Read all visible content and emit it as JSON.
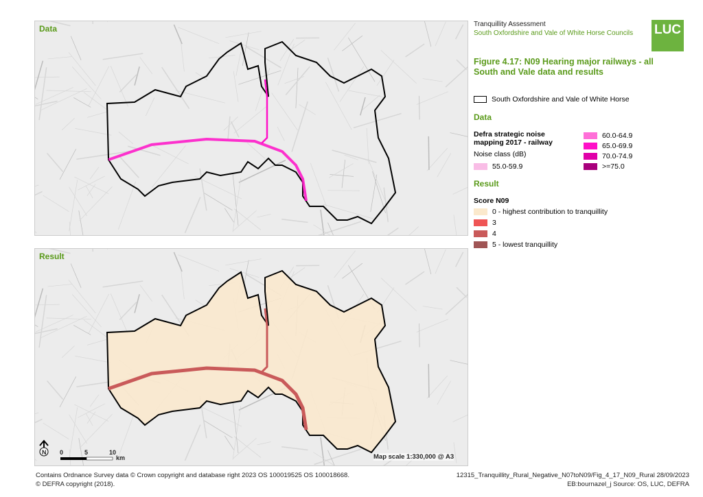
{
  "header": {
    "line1": "Tranquillity Assessment",
    "line2": "South Oxfordshire and Vale of White Horse Councils",
    "logo": "LUC"
  },
  "figure_title": "Figure 4.17: N09 Hearing major railways - all South and Vale data and results",
  "maps": {
    "top_label": "Data",
    "bottom_label": "Result",
    "scale_text": "Map scale 1:330,000 @ A3",
    "scalebar": [
      "0",
      "5",
      "10",
      "km"
    ],
    "north": "N"
  },
  "legend": {
    "boundary": "South Oxfordshire and Vale of White Horse",
    "data_heading": "Data",
    "data_title": "Defra strategic noise mapping 2017 - railway",
    "data_subtitle": "Noise class (dB)",
    "noise_classes": [
      {
        "label": "55.0-59.9",
        "color": "#f9bde6"
      },
      {
        "label": "60.0-64.9",
        "color": "#ff6fd8"
      },
      {
        "label": "65.0-69.9",
        "color": "#ff10c8"
      },
      {
        "label": "70.0-74.9",
        "color": "#e000a8"
      },
      {
        "label": ">=75.0",
        "color": "#a8007c"
      }
    ],
    "result_heading": "Result",
    "result_title": "Score N09",
    "scores": [
      {
        "label": "0 - highest contribution to tranquillity",
        "color": "#fbe9cc"
      },
      {
        "label": "3",
        "color": "#ef5555"
      },
      {
        "label": "4",
        "color": "#c95a5a"
      },
      {
        "label": "5 - lowest tranquillity",
        "color": "#a05555"
      }
    ]
  },
  "footer": {
    "left1": "Contains Ordnance Survey data © Crown copyright and database right 2023 OS 100019525 OS 100018668.",
    "left2": "© DEFRA copyright (2018).",
    "right1": "12315_Tranquillity_Rural_Negative_N07toN09/Fig_4_17_N09_Rural 28/09/2023",
    "right2": "EB:bournazel_j Source: OS, LUC, DEFRA"
  }
}
